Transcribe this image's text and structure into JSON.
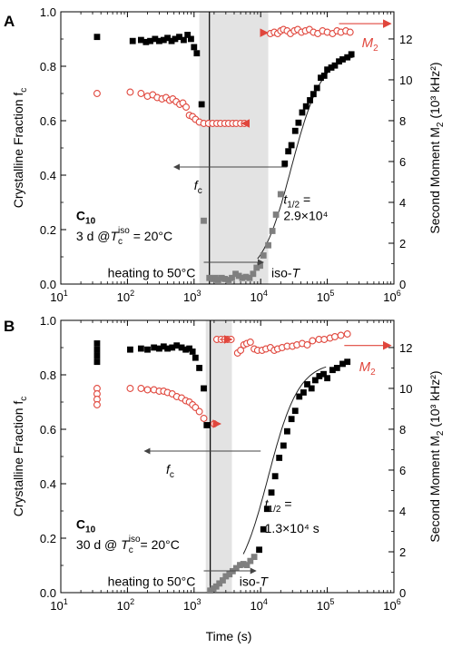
{
  "figure": {
    "x_axis_label": "Time (s)",
    "left_axis_label": "Crystalline Fraction f",
    "left_axis_sub": "c",
    "right_axis_label": "Second Moment M",
    "right_axis_sub": "2",
    "right_axis_units": "(10³ kHz²)"
  },
  "chart_data": [
    {
      "panel": "A",
      "type": "scatter",
      "xscale": "log",
      "xlim": [
        10,
        1000000
      ],
      "ylim_left": [
        0,
        1.0
      ],
      "ylim_right": [
        0,
        13.33
      ],
      "x_ticks": [
        10,
        100,
        1000,
        10000,
        100000,
        1000000
      ],
      "y_ticks_left": [
        0.0,
        0.2,
        0.4,
        0.6,
        0.8,
        1.0
      ],
      "y_ticks_right": [
        0,
        2,
        4,
        6,
        8,
        10,
        12
      ],
      "sample": "C",
      "sample_sub": "10",
      "condition_prefix": "3 d @T",
      "condition_sub": "c",
      "condition_sup": "iso",
      "condition_suffix": " = 20°C",
      "heating_label": "heating to 50°C",
      "iso_label": "iso-T",
      "f_label": "f",
      "f_sub": "c",
      "m2_label": "M",
      "m2_sub": "2",
      "thalf_label": "t",
      "thalf_sub": "1/2",
      "thalf_eq": " =",
      "thalf_value": "2.9×10⁴",
      "shade_range": [
        1200,
        13000
      ],
      "vline_x": 1700,
      "series": [
        {
          "kind": "M2_filled",
          "color": "#000000",
          "x": [
            35,
            120,
            160,
            190,
            220,
            260,
            300,
            350,
            400,
            460,
            520,
            600,
            700,
            800,
            900,
            1000,
            1100,
            1300,
            23000,
            26000,
            29000,
            33000,
            37000,
            42000,
            48000,
            55000,
            62000,
            70000,
            80000,
            90000,
            100000,
            115000,
            130000,
            150000,
            170000,
            200000,
            230000
          ],
          "y": [
            12.1,
            11.9,
            11.95,
            11.85,
            11.9,
            12.0,
            11.9,
            11.95,
            12.05,
            11.9,
            12.0,
            12.1,
            11.95,
            12.2,
            12.0,
            11.6,
            11.3,
            8.8,
            5.9,
            6.5,
            6.8,
            7.5,
            7.9,
            8.4,
            8.7,
            9.0,
            9.3,
            9.6,
            10.1,
            10.2,
            10.5,
            10.6,
            10.7,
            10.9,
            11.0,
            11.1,
            11.25
          ]
        },
        {
          "kind": "M2_filled_grey",
          "color": "#7f7f7f",
          "x": [
            1400
          ],
          "y": [
            3.1
          ]
        },
        {
          "kind": "M2_grey_low",
          "color": "#7f7f7f",
          "x": [
            1700,
            1900,
            2100,
            2300,
            2600,
            2900,
            3300,
            3700,
            4200,
            4700,
            5300,
            6000,
            6800,
            7700,
            8700,
            9800,
            11000,
            13000,
            15000,
            17000,
            20000
          ],
          "y": [
            0.3,
            0.25,
            0.3,
            0.2,
            0.3,
            0.25,
            0.2,
            0.3,
            0.5,
            0.4,
            0.3,
            0.35,
            0.3,
            0.5,
            0.8,
            0.9,
            1.4,
            1.9,
            2.6,
            3.4,
            4.4
          ]
        },
        {
          "kind": "fc_open",
          "color": "#e0463c",
          "x": [
            35,
            110,
            160,
            200,
            240,
            280,
            330,
            380,
            430,
            480,
            540,
            610,
            680,
            760,
            850,
            950,
            1050,
            1200,
            1400,
            1650,
            1900,
            2200,
            2500,
            2900,
            3300,
            3800,
            4300,
            5000,
            5700,
            14000,
            16000,
            18000,
            20000,
            22000,
            25000,
            28000,
            32000,
            36000,
            41000,
            47000,
            54000,
            62000,
            72000,
            85000,
            100000,
            120000,
            140000,
            160000,
            190000,
            220000
          ],
          "y": [
            0.7,
            0.705,
            0.7,
            0.69,
            0.695,
            0.685,
            0.68,
            0.685,
            0.675,
            0.68,
            0.67,
            0.66,
            0.665,
            0.65,
            0.62,
            0.615,
            0.605,
            0.595,
            0.59,
            0.59,
            0.59,
            0.59,
            0.59,
            0.59,
            0.59,
            0.59,
            0.59,
            0.59,
            0.59,
            0.92,
            0.925,
            0.92,
            0.93,
            0.935,
            0.93,
            0.92,
            0.93,
            0.935,
            0.925,
            0.93,
            0.935,
            0.925,
            0.92,
            0.93,
            0.925,
            0.92,
            0.93,
            0.925,
            0.93,
            0.925
          ]
        }
      ]
    },
    {
      "panel": "B",
      "type": "scatter",
      "xscale": "log",
      "xlim": [
        10,
        1000000
      ],
      "ylim_left": [
        0,
        1.0
      ],
      "ylim_right": [
        0,
        13.33
      ],
      "x_ticks": [
        10,
        100,
        1000,
        10000,
        100000,
        1000000
      ],
      "y_ticks_left": [
        0.0,
        0.2,
        0.4,
        0.6,
        0.8,
        1.0
      ],
      "y_ticks_right": [
        0,
        2,
        4,
        6,
        8,
        10,
        12
      ],
      "sample": "C",
      "sample_sub": "10",
      "condition_prefix": "30 d @ T",
      "condition_sub": "c",
      "condition_sup": "iso",
      "condition_suffix": "= 20°C",
      "heating_label": "heating to 50°C",
      "iso_label": "iso-T",
      "f_label": "f",
      "f_sub": "c",
      "m2_label": "M",
      "m2_sub": "2",
      "thalf_label": "t",
      "thalf_sub": "1/2",
      "thalf_eq": " =",
      "thalf_value": "1.3×10⁴ s",
      "shade_range": [
        1500,
        3700
      ],
      "vline_x": 1750,
      "series": [
        {
          "kind": "M2_filled",
          "color": "#000000",
          "x": [
            35,
            35,
            35,
            35,
            110,
            160,
            200,
            250,
            300,
            350,
            400,
            470,
            550,
            650,
            750,
            850,
            950,
            1050,
            1200,
            1400,
            1550,
            9500,
            11000,
            12500,
            14500,
            16500,
            19000,
            22000,
            25000,
            29000,
            33000,
            38000,
            44000,
            50000,
            58000,
            66000,
            76000,
            88000,
            100000,
            120000,
            140000,
            170000,
            200000
          ],
          "y": [
            12.2,
            11.9,
            11.6,
            11.3,
            11.9,
            11.95,
            11.9,
            12.0,
            11.95,
            12.05,
            11.95,
            12.0,
            12.1,
            12.0,
            11.9,
            11.95,
            11.8,
            11.5,
            11.0,
            10.0,
            8.2,
            2.1,
            3.1,
            4.1,
            4.9,
            5.7,
            6.6,
            7.2,
            7.9,
            8.5,
            8.9,
            9.6,
            9.8,
            10.2,
            10.0,
            10.4,
            10.6,
            10.7,
            10.5,
            10.9,
            11.0,
            11.2,
            11.3
          ]
        },
        {
          "kind": "M2_grey_low",
          "color": "#7f7f7f",
          "x": [
            1750,
            1950,
            2150,
            2400,
            2700,
            3000,
            3400,
            3800,
            4300,
            4900,
            5500,
            6200,
            7000,
            8000
          ],
          "y": [
            0.1,
            0.2,
            0.3,
            0.45,
            0.6,
            0.8,
            0.9,
            1.05,
            1.2,
            1.35,
            1.4,
            1.35,
            1.55,
            1.75
          ]
        },
        {
          "kind": "fc_open",
          "color": "#e0463c",
          "x": [
            35,
            35,
            35,
            35,
            110,
            160,
            200,
            250,
            300,
            350,
            400,
            470,
            550,
            650,
            750,
            850,
            950,
            1050,
            1200,
            1400,
            2000,
            2200,
            2550,
            2900,
            3200,
            3600,
            4500,
            5000,
            5600,
            6200,
            7000,
            8000,
            9000,
            10500,
            12000,
            14000,
            16000,
            18000,
            21000,
            25000,
            30000,
            35000,
            42000,
            50000,
            60000,
            75000,
            90000,
            110000,
            130000,
            160000,
            200000
          ],
          "y": [
            0.75,
            0.73,
            0.71,
            0.69,
            0.75,
            0.75,
            0.745,
            0.745,
            0.74,
            0.74,
            0.735,
            0.73,
            0.72,
            0.715,
            0.705,
            0.7,
            0.69,
            0.68,
            0.665,
            0.64,
            0.62,
            0.93,
            0.93,
            0.93,
            0.93,
            0.93,
            0.88,
            0.89,
            0.91,
            0.915,
            0.92,
            0.895,
            0.89,
            0.89,
            0.895,
            0.9,
            0.89,
            0.895,
            0.9,
            0.905,
            0.905,
            0.91,
            0.915,
            0.91,
            0.925,
            0.93,
            0.93,
            0.935,
            0.94,
            0.945,
            0.95
          ]
        }
      ]
    }
  ]
}
